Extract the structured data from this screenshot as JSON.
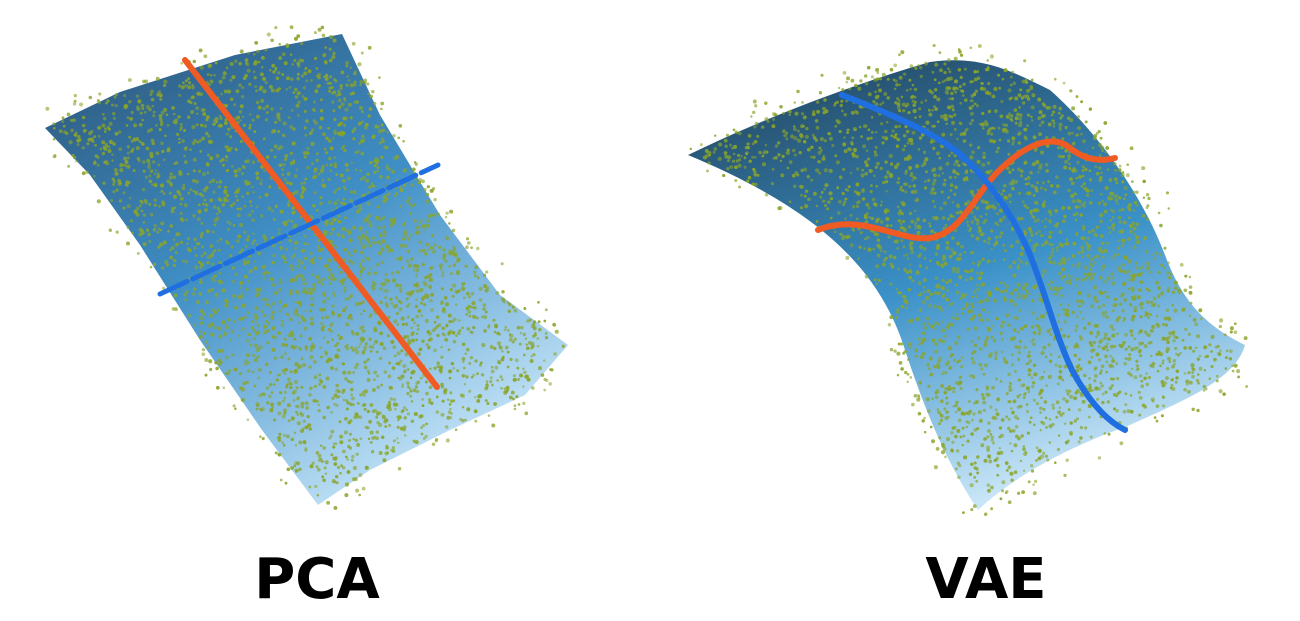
{
  "panels": [
    {
      "id": "pca",
      "label": "PCA"
    },
    {
      "id": "vae",
      "label": "VAE"
    }
  ],
  "colors": {
    "surface_dark": "#2f5f86",
    "surface_mid": "#3b8fc6",
    "surface_light": "#bfe0f5",
    "points": "#8aa52a",
    "curve_orange": "#f05a23",
    "curve_blue": "#1f6fe0"
  }
}
